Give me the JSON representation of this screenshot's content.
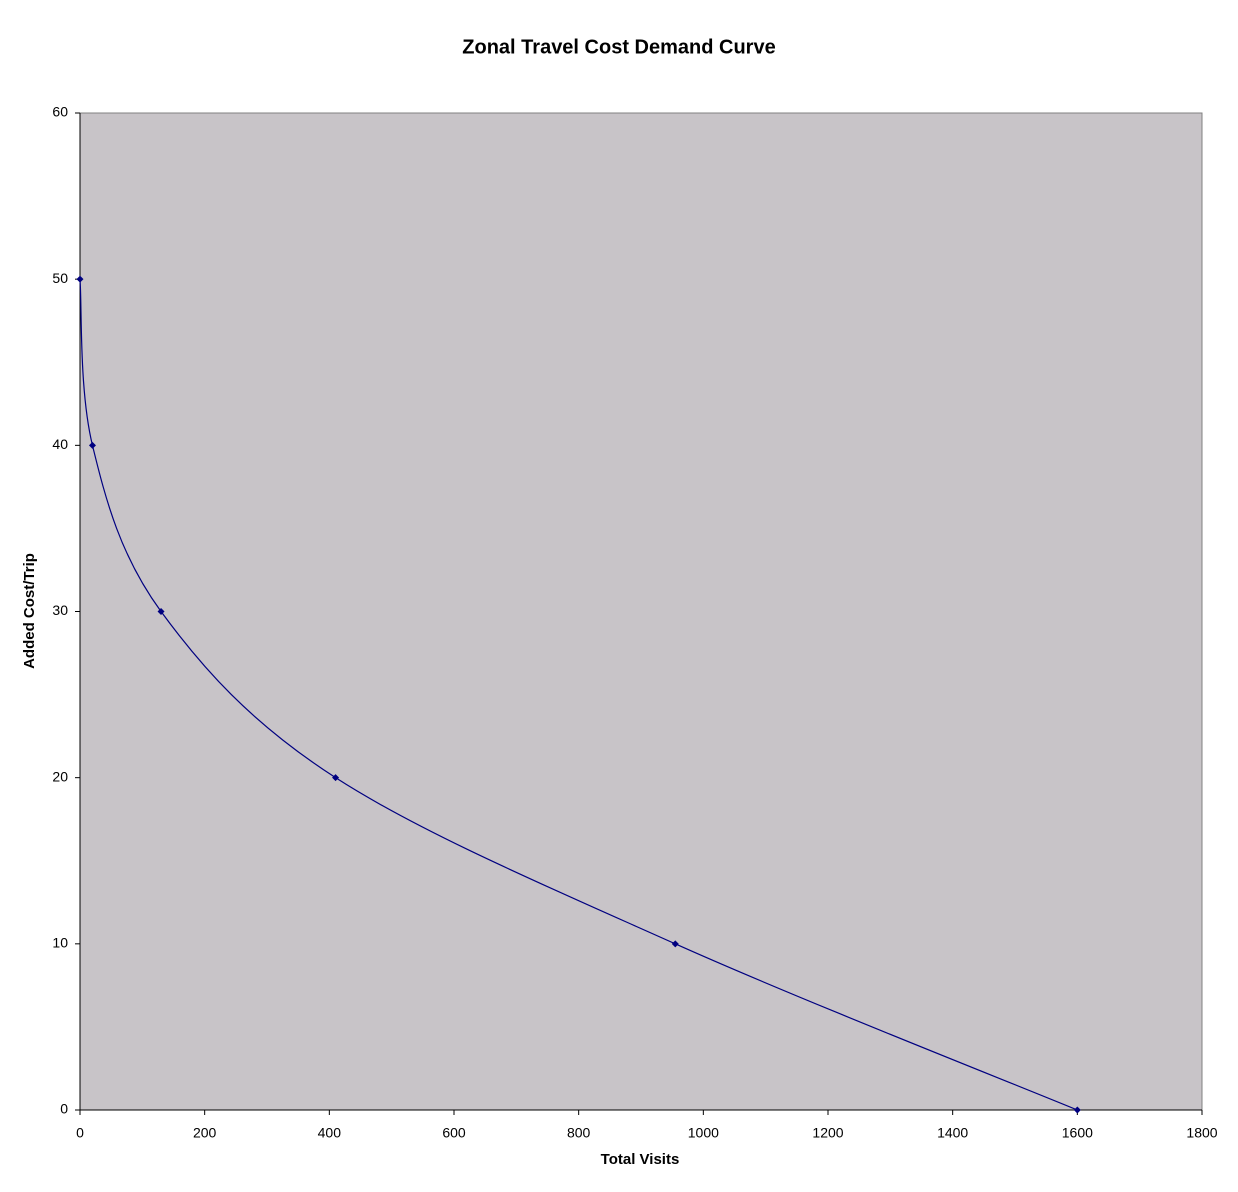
{
  "chart_data": {
    "type": "line",
    "title": "Zonal Travel Cost Demand Curve",
    "x_label": "Total Visits",
    "y_label": "Added Cost/Trip",
    "x": [
      0,
      20,
      130,
      410,
      955,
      1600
    ],
    "series": [
      {
        "values": [
          50,
          40,
          30,
          20,
          10,
          0
        ],
        "color": "#000080"
      }
    ],
    "xlim": [
      0,
      1800
    ],
    "xticks": [
      0,
      200,
      400,
      600,
      800,
      1000,
      1200,
      1400,
      1600,
      1800
    ],
    "ylim": [
      0,
      60
    ],
    "yticks": [
      0,
      10,
      20,
      30,
      40,
      50,
      60
    ],
    "plot_background": "#c8c4c8",
    "smooth": true
  }
}
